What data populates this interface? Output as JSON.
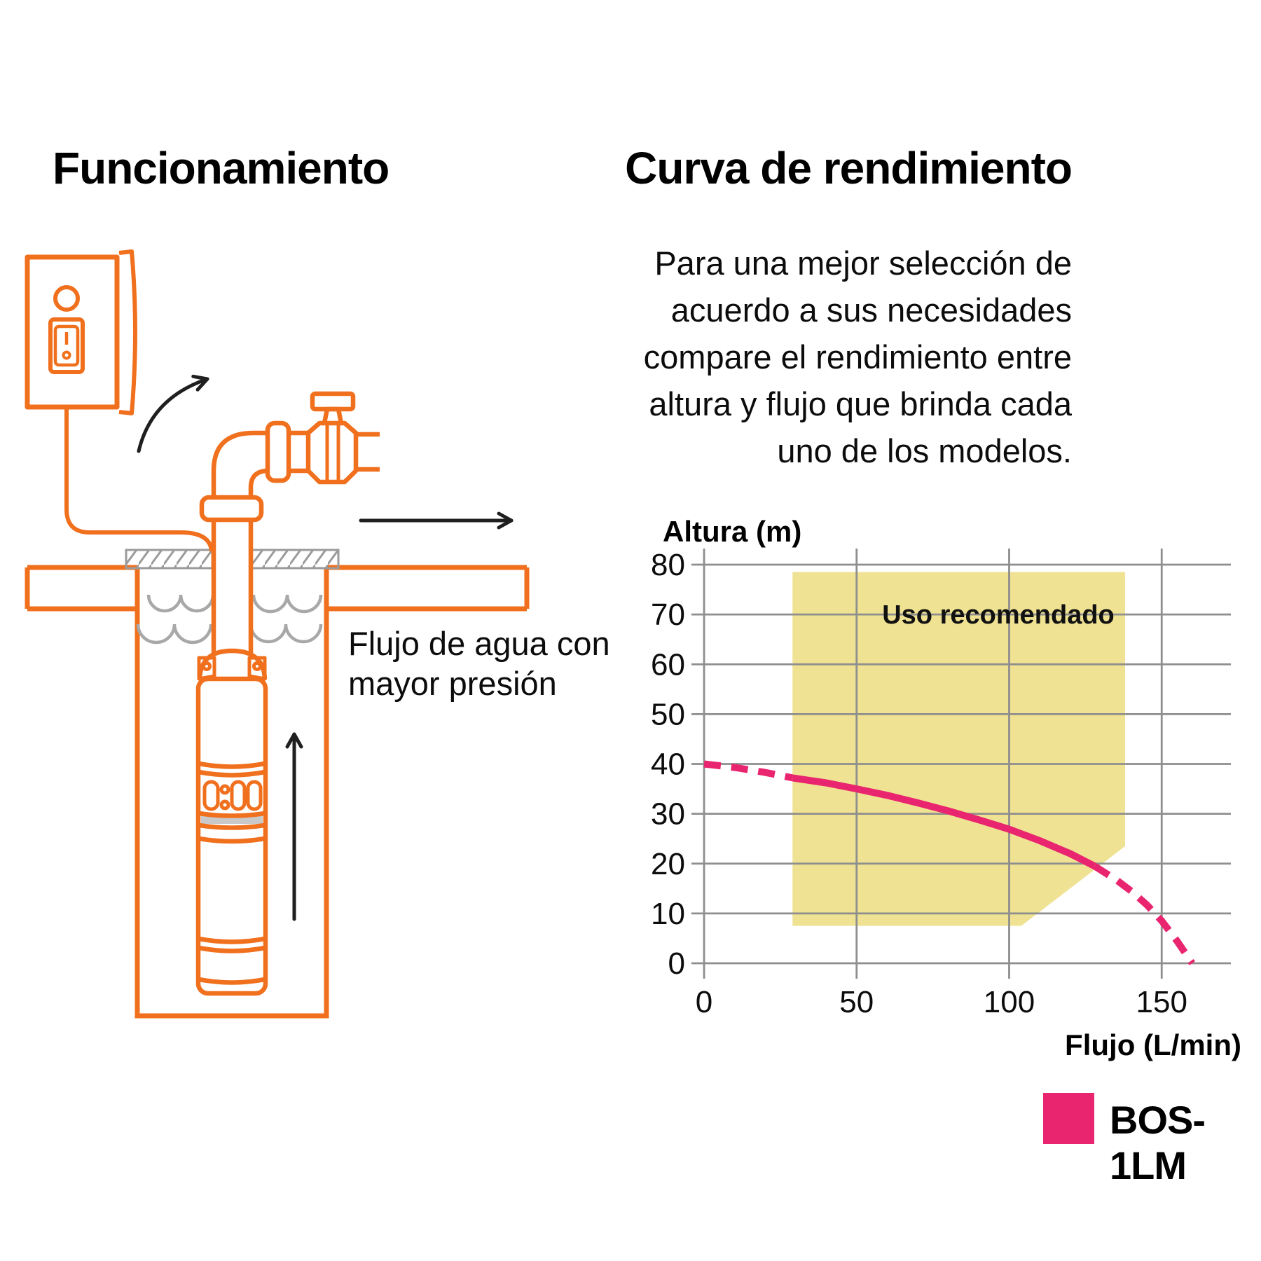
{
  "page": {
    "background": "#FFFFFF",
    "accent_orange": "#F0701E",
    "accent_pink": "#E9256F",
    "region_yellow": "#EFE292",
    "grid_gray": "#8E8E8E",
    "water_gray": "#A8A8A8"
  },
  "left_panel": {
    "title": "Funcionamiento",
    "flow_note_lines": [
      "Flujo de agua con",
      "mayor presión"
    ],
    "diagram_parts": [
      "power-switch-box",
      "indicator-light",
      "rocker-switch",
      "power-cable",
      "riser-pipe",
      "pipe-coupling",
      "pipe-elbow",
      "union-nut",
      "gate-valve",
      "valve-handle",
      "ground-surface",
      "concrete-pad",
      "well-shaft",
      "water-level-waves",
      "submersible-pump",
      "flow-direction-arrows"
    ]
  },
  "right_panel": {
    "title": "Curva de rendimiento",
    "intro_lines": [
      "Para una mejor selección de",
      "acuerdo a sus necesidades",
      "compare el rendimiento entre",
      "altura y flujo que brinda cada",
      "uno de los modelos."
    ],
    "legend": {
      "label": "BOS-1LM",
      "color": "#E9256F"
    }
  },
  "chart_data": {
    "type": "line",
    "title": "Curva de rendimiento",
    "xlabel": "Flujo (L/min)",
    "ylabel": "Altura (m)",
    "xlim": [
      0,
      172
    ],
    "ylim": [
      0,
      83
    ],
    "x_ticks": [
      0,
      50,
      100,
      150
    ],
    "y_ticks": [
      0,
      10,
      20,
      30,
      40,
      50,
      60,
      70,
      80
    ],
    "grid": true,
    "legend_position": "bottom-right",
    "series": [
      {
        "name": "BOS-1LM",
        "color": "#E9256F",
        "segments": [
          {
            "style": "dashed",
            "points": [
              [
                0,
                40
              ],
              [
                10,
                39.3
              ],
              [
                20,
                38.3
              ],
              [
                29,
                37.2
              ]
            ]
          },
          {
            "style": "solid",
            "points": [
              [
                29,
                37.2
              ],
              [
                40,
                36.2
              ],
              [
                50,
                35
              ],
              [
                60,
                33.7
              ],
              [
                70,
                32.2
              ],
              [
                80,
                30.6
              ],
              [
                90,
                28.8
              ],
              [
                100,
                26.9
              ],
              [
                110,
                24.6
              ],
              [
                120,
                22
              ],
              [
                128,
                19.5
              ]
            ]
          },
          {
            "style": "dashed",
            "points": [
              [
                128,
                19.5
              ],
              [
                135,
                16.8
              ],
              [
                140,
                14.5
              ],
              [
                145,
                11.8
              ],
              [
                150,
                8.5
              ],
              [
                155,
                4.5
              ],
              [
                160,
                0
              ]
            ]
          }
        ]
      }
    ],
    "recommended_region": {
      "label": "Uso recomendado",
      "color": "#EFE292",
      "polygon": [
        [
          29,
          78.5
        ],
        [
          138,
          78.5
        ],
        [
          138,
          23.5
        ],
        [
          104,
          7.5
        ],
        [
          29,
          7.5
        ]
      ]
    }
  }
}
